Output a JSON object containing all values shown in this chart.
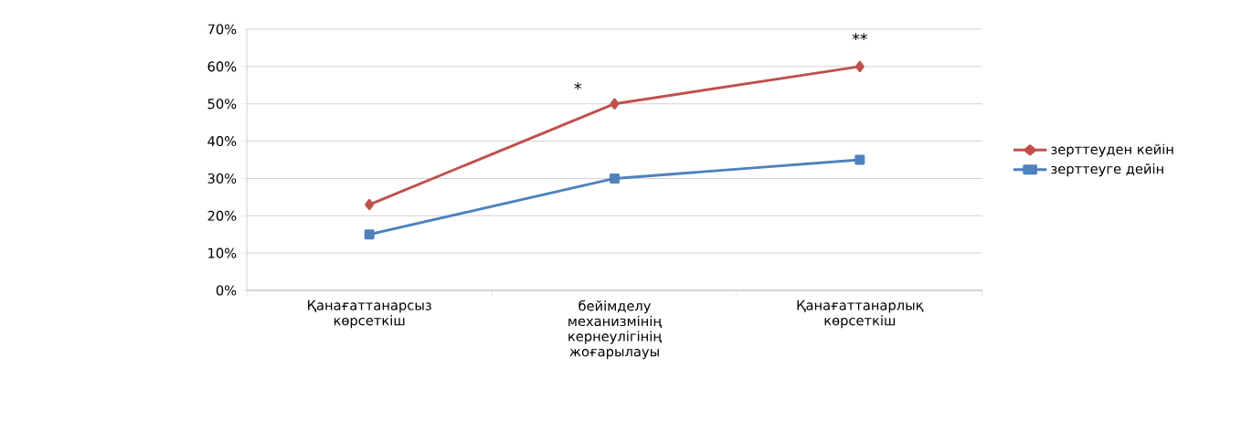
{
  "chart_data": {
    "type": "line",
    "categories": [
      "Қанағаттанарсыз көрсеткіш",
      "бейімделу механизмінің кернеулігінің жоғарылауы",
      "Қанағаттанарлық көрсеткіш"
    ],
    "series": [
      {
        "name": "зерттеуден кейін",
        "color": "#c0504d",
        "marker": "diamond",
        "values": [
          23,
          50,
          60
        ]
      },
      {
        "name": "зерттеуге дейін",
        "color": "#4f81bd",
        "marker": "square",
        "values": [
          15,
          30,
          35
        ]
      }
    ],
    "ylim": [
      0,
      70
    ],
    "yticks": [
      {
        "value": 0,
        "label": "0%"
      },
      {
        "value": 10,
        "label": "10%"
      },
      {
        "value": 20,
        "label": "20%"
      },
      {
        "value": 30,
        "label": "30%"
      },
      {
        "value": 40,
        "label": "40%"
      },
      {
        "value": 50,
        "label": "50%"
      },
      {
        "value": 60,
        "label": "60%"
      },
      {
        "value": 70,
        "label": "70%"
      }
    ],
    "grid": "y",
    "legend": "right",
    "line_style": "solid",
    "annotations": [
      "*",
      "**"
    ]
  }
}
